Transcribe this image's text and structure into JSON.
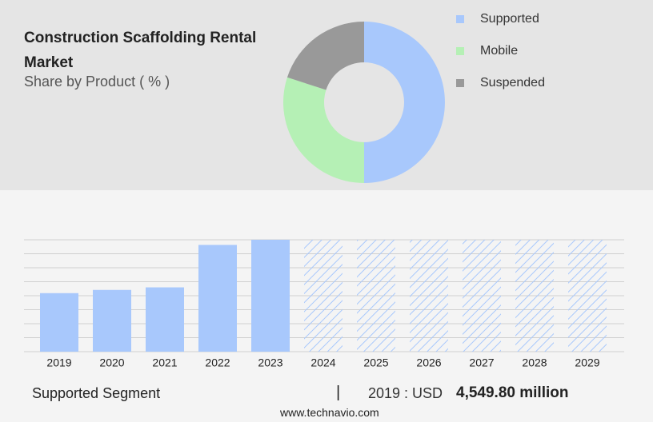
{
  "title": "Construction Scaffolding Rental Market",
  "subtitle": "Share by Product ( % )",
  "chart_data": [
    {
      "type": "pie",
      "donut": true,
      "series": [
        {
          "name": "Supported",
          "color": "#a8c8fc",
          "values": [
            50
          ]
        },
        {
          "name": "Mobile",
          "color": "#b5f0b5",
          "values": [
            30
          ]
        },
        {
          "name": "Suspended",
          "color": "#999999",
          "values": [
            20
          ]
        }
      ]
    },
    {
      "type": "bar",
      "categories": [
        "2019",
        "2020",
        "2021",
        "2022",
        "2023",
        "2024",
        "2025",
        "2026",
        "2027",
        "2028",
        "2029"
      ],
      "values": [
        4549.8,
        4800,
        5000,
        8300,
        8700,
        null,
        null,
        null,
        null,
        null,
        null
      ],
      "color": "#a8c8fc",
      "ylim": [
        0,
        8700
      ],
      "grid": true
    }
  ],
  "footer": {
    "segment": "Supported Segment",
    "separator": "|",
    "year_label": "2019 : USD",
    "value": "4,549.80 million",
    "source": "www.technavio.com"
  }
}
